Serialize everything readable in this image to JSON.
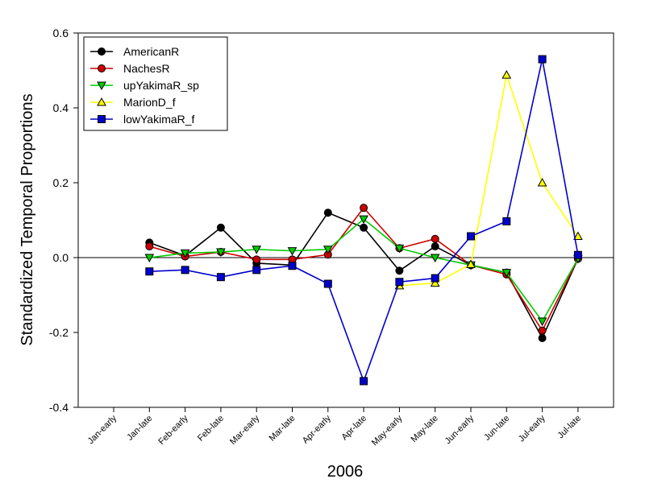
{
  "chart_data": {
    "type": "line",
    "title": "",
    "xlabel": "2006",
    "ylabel": "Standardized Temporal Proportions",
    "categories": [
      "Jan-early",
      "Jan-late",
      "Feb-early",
      "Feb-late",
      "Mar-early",
      "Mar-late",
      "Apr-early",
      "Apr-late",
      "May-early",
      "May-late",
      "Jun-early",
      "Jun-late",
      "Jul-early",
      "Jul-late"
    ],
    "ylim": [
      -0.4,
      0.6
    ],
    "yticks": [
      -0.4,
      -0.2,
      0.0,
      0.2,
      0.4,
      0.6
    ],
    "ytick_labels": [
      "-0.4",
      "-0.2",
      "0.0",
      "0.2",
      "0.4",
      "0.6"
    ],
    "zero_line": true,
    "grid": false,
    "legend_position": "top-left",
    "series": [
      {
        "name": "AmericanR",
        "color": "#000000",
        "marker": "circle",
        "values": [
          null,
          0.04,
          0.005,
          0.08,
          -0.015,
          -0.02,
          0.12,
          0.08,
          -0.035,
          0.03,
          -0.02,
          -0.04,
          -0.215,
          -0.003
        ]
      },
      {
        "name": "NachesR",
        "color": "#cc0000",
        "marker": "circle",
        "values": [
          null,
          0.03,
          0.003,
          0.015,
          -0.005,
          -0.005,
          0.008,
          0.133,
          0.025,
          0.05,
          -0.02,
          -0.045,
          -0.195,
          -0.003
        ]
      },
      {
        "name": "upYakimaR_sp",
        "color": "#00cc00",
        "marker": "triangle-down",
        "values": [
          null,
          0.0,
          0.012,
          0.015,
          0.022,
          0.018,
          0.022,
          0.103,
          0.025,
          0.0,
          -0.02,
          -0.04,
          -0.17,
          -0.003
        ]
      },
      {
        "name": "MarionD_f",
        "color": "#ffff00",
        "marker": "triangle-up",
        "values": [
          null,
          null,
          null,
          null,
          null,
          null,
          null,
          null,
          -0.075,
          -0.068,
          -0.018,
          0.488,
          0.2,
          0.057
        ]
      },
      {
        "name": "lowYakimaR_f",
        "color": "#0000cc",
        "marker": "square",
        "values": [
          null,
          -0.037,
          -0.033,
          -0.052,
          -0.033,
          -0.022,
          -0.07,
          -0.33,
          -0.065,
          -0.055,
          0.057,
          0.097,
          0.53,
          0.007
        ]
      }
    ]
  }
}
